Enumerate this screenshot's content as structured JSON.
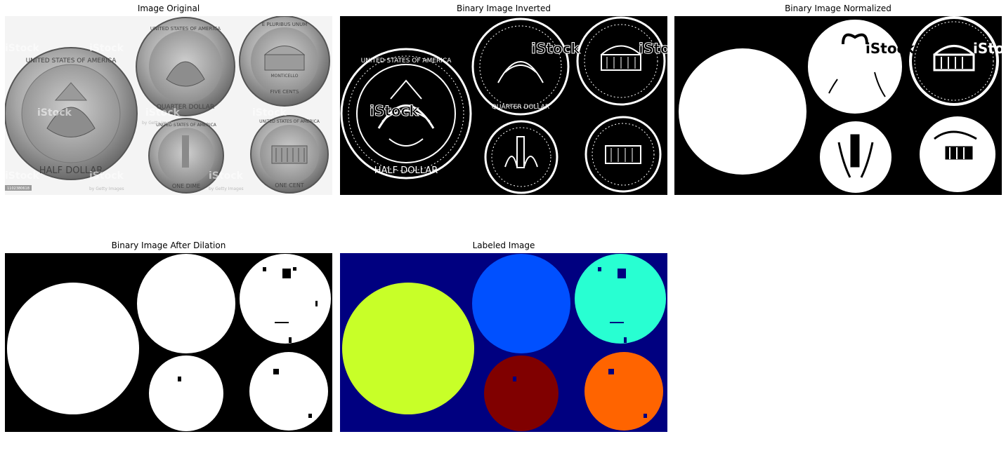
{
  "panels": [
    {
      "title": "Image Original"
    },
    {
      "title": "Binary Image Inverted"
    },
    {
      "title": "Binary Image Normalized"
    },
    {
      "title": "Binary Image After Dilation"
    },
    {
      "title": "Labeled Image"
    }
  ],
  "coins": {
    "half_dollar": {
      "top": "UNITED STATES OF AMERICA",
      "bottom": "HALF DOLLAR"
    },
    "quarter": {
      "top": "UNITED STATES OF AMERICA",
      "bottom": "QUARTER DOLLAR"
    },
    "nickel": {
      "top": "E PLURIBUS UNUM",
      "middle": "MONTICELLO",
      "bottom": "FIVE CENTS"
    },
    "dime": {
      "top": "UNITED STATES OF AMERICA",
      "bottom": "ONE DIME"
    },
    "penny": {
      "top": "UNITED STATES OF AMERICA",
      "bottom": "ONE CENT"
    }
  },
  "watermark": {
    "brand": "iStock",
    "credit": "by Getty Images",
    "id_tag": "1102380618"
  },
  "labels_colors": {
    "background": "#000080",
    "half_dollar": "#c8ff28",
    "quarter": "#0050ff",
    "nickel": "#28ffd2",
    "dime": "#800000",
    "penny": "#ff6400"
  }
}
